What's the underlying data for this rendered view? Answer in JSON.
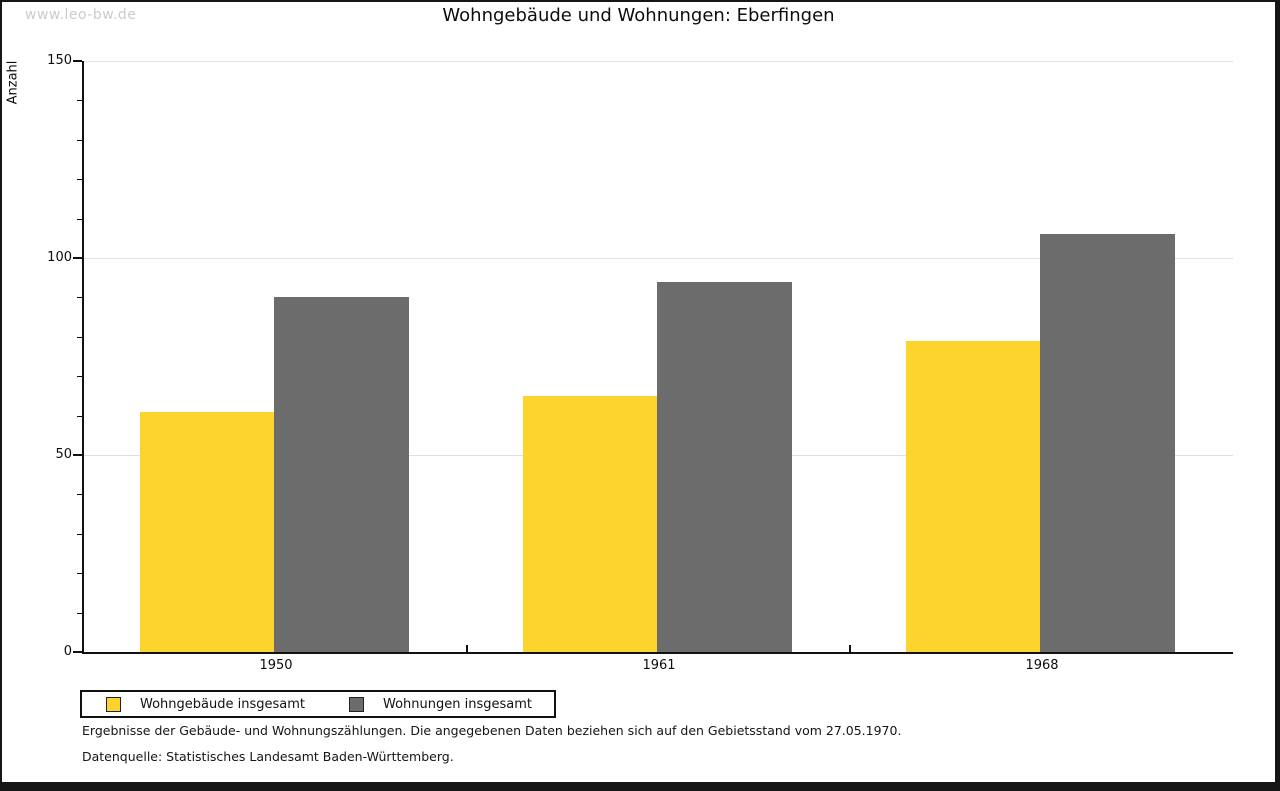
{
  "watermark": "www.leo-bw.de",
  "title": "Wohngebäude und Wohnungen: Eberfingen",
  "chart_data": {
    "type": "bar",
    "title": "Wohngebäude und Wohnungen: Eberfingen",
    "categories": [
      "1950",
      "1961",
      "1968"
    ],
    "series": [
      {
        "name": "Wohngebäude insgesamt",
        "color": "#FCD42D",
        "values": [
          61,
          65,
          79
        ]
      },
      {
        "name": "Wohnungen insgesamt",
        "color": "#6C6C6C",
        "values": [
          90,
          94,
          106
        ]
      }
    ],
    "xlabel": "",
    "ylabel": "Anzahl",
    "ylim": [
      0,
      150
    ],
    "yticks_major": [
      0,
      50,
      100,
      150
    ],
    "ytick_minor_step": 10,
    "gridlines": [
      50,
      100,
      150
    ],
    "grid": "horizontal",
    "legend_position": "bottom-left"
  },
  "footer": {
    "line1": "Ergebnisse der Gebäude- und Wohnungszählungen. Die angegebenen Daten beziehen sich auf den Gebietsstand vom 27.05.1970.",
    "line2": "Datenquelle: Statistisches Landesamt Baden-Württemberg."
  }
}
